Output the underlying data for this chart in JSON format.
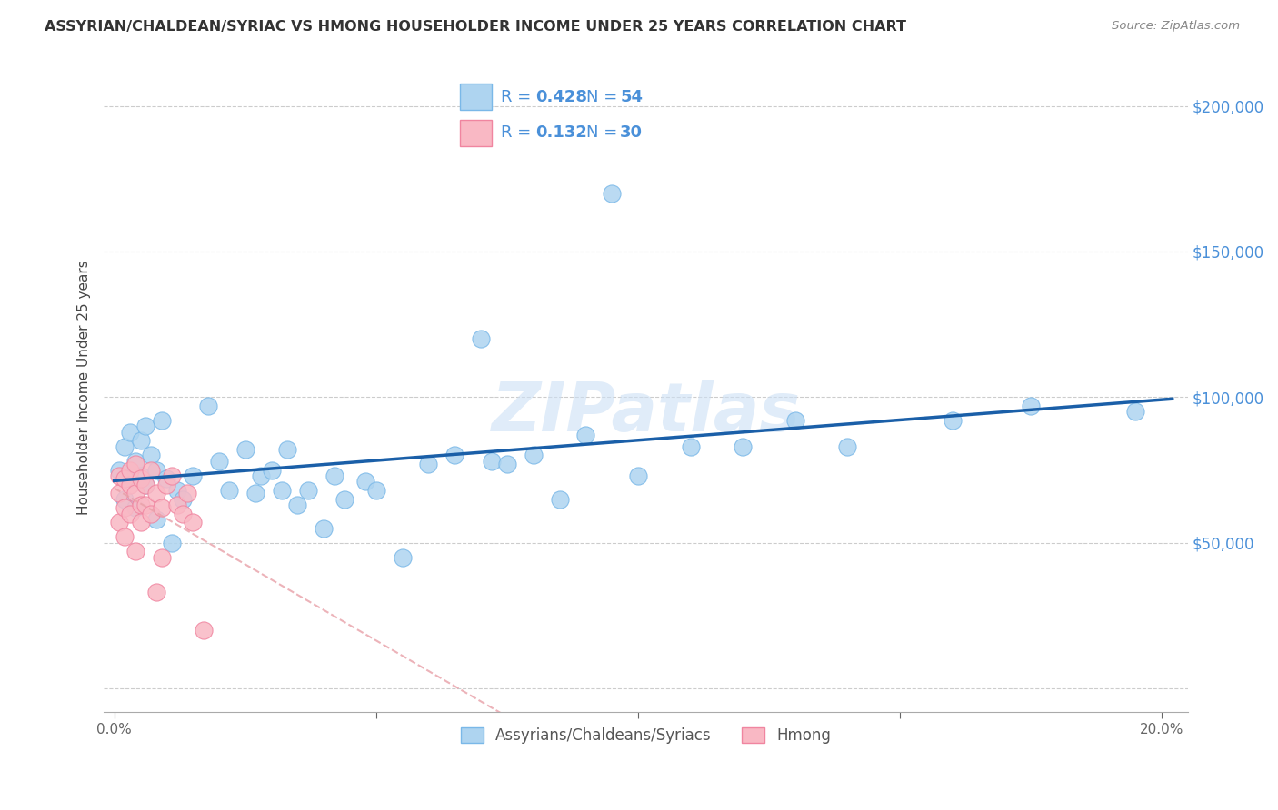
{
  "title": "ASSYRIAN/CHALDEAN/SYRIAC VS HMONG HOUSEHOLDER INCOME UNDER 25 YEARS CORRELATION CHART",
  "source": "Source: ZipAtlas.com",
  "ylabel": "Householder Income Under 25 years",
  "xlim_min": -0.002,
  "xlim_max": 0.205,
  "ylim_min": -8000,
  "ylim_max": 215000,
  "yticks": [
    0,
    50000,
    100000,
    150000,
    200000
  ],
  "ytick_labels": [
    "",
    "$50,000",
    "$100,000",
    "$150,000",
    "$200,000"
  ],
  "xticks": [
    0.0,
    0.05,
    0.1,
    0.15,
    0.2
  ],
  "xtick_labels": [
    "0.0%",
    "",
    "",
    "",
    "20.0%"
  ],
  "blue_face": "#aed4f0",
  "blue_edge": "#7ab8e8",
  "pink_face": "#f9b8c4",
  "pink_edge": "#f085a0",
  "line_blue_color": "#1a5fa8",
  "line_pink_color": "#e8a0a8",
  "legend_R_blue": "0.428",
  "legend_N_blue": "54",
  "legend_R_pink": "0.132",
  "legend_N_pink": "30",
  "legend_label_blue": "Assyrians/Chaldeans/Syriacs",
  "legend_label_pink": "Hmong",
  "accent_color": "#4a90d9",
  "watermark": "ZIPatlas",
  "blue_x": [
    0.001,
    0.002,
    0.002,
    0.003,
    0.003,
    0.004,
    0.004,
    0.005,
    0.005,
    0.006,
    0.006,
    0.007,
    0.008,
    0.008,
    0.009,
    0.01,
    0.011,
    0.012,
    0.013,
    0.015,
    0.018,
    0.02,
    0.022,
    0.025,
    0.027,
    0.028,
    0.03,
    0.032,
    0.033,
    0.035,
    0.037,
    0.04,
    0.042,
    0.044,
    0.048,
    0.05,
    0.055,
    0.06,
    0.065,
    0.07,
    0.072,
    0.075,
    0.08,
    0.085,
    0.09,
    0.095,
    0.1,
    0.11,
    0.12,
    0.13,
    0.14,
    0.16,
    0.175,
    0.195
  ],
  "blue_y": [
    75000,
    83000,
    65000,
    72000,
    88000,
    78000,
    62000,
    85000,
    73000,
    90000,
    70000,
    80000,
    75000,
    58000,
    92000,
    72000,
    50000,
    68000,
    65000,
    73000,
    97000,
    78000,
    68000,
    82000,
    67000,
    73000,
    75000,
    68000,
    82000,
    63000,
    68000,
    55000,
    73000,
    65000,
    71000,
    68000,
    45000,
    77000,
    80000,
    120000,
    78000,
    77000,
    80000,
    65000,
    87000,
    170000,
    73000,
    83000,
    83000,
    92000,
    83000,
    92000,
    97000,
    95000
  ],
  "pink_x": [
    0.001,
    0.001,
    0.001,
    0.002,
    0.002,
    0.002,
    0.003,
    0.003,
    0.003,
    0.004,
    0.004,
    0.004,
    0.005,
    0.005,
    0.005,
    0.006,
    0.006,
    0.007,
    0.007,
    0.008,
    0.008,
    0.009,
    0.009,
    0.01,
    0.011,
    0.012,
    0.013,
    0.014,
    0.015,
    0.017
  ],
  "pink_y": [
    57000,
    67000,
    73000,
    62000,
    72000,
    52000,
    70000,
    75000,
    60000,
    77000,
    67000,
    47000,
    72000,
    63000,
    57000,
    70000,
    63000,
    75000,
    60000,
    67000,
    33000,
    62000,
    45000,
    70000,
    73000,
    63000,
    60000,
    67000,
    57000,
    20000
  ]
}
